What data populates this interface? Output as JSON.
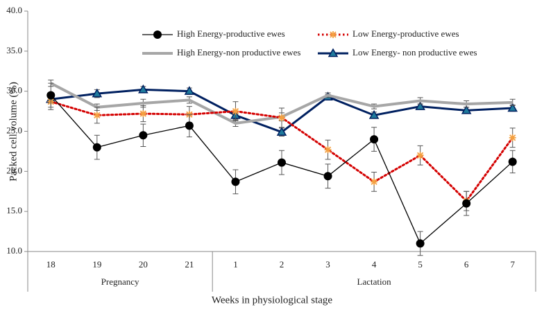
{
  "chart_data": {
    "type": "line",
    "x_label": "Weeks in physiological stage",
    "y_label": "Packed cell volume (%)",
    "categories": [
      "18",
      "19",
      "20",
      "21",
      "1",
      "2",
      "3",
      "4",
      "5",
      "6",
      "7"
    ],
    "groups": [
      {
        "name": "Pregnancy",
        "span": 4
      },
      {
        "name": "Lactation",
        "span": 7
      }
    ],
    "ylim": [
      10,
      40
    ],
    "yticks": [
      {
        "value": 10,
        "label": "10.0"
      },
      {
        "value": 15,
        "label": "15.0"
      },
      {
        "value": 20,
        "label": "20.0"
      },
      {
        "value": 25,
        "label": "25.0"
      },
      {
        "value": 30,
        "label": "30.0"
      },
      {
        "value": 35,
        "label": "35.0"
      },
      {
        "value": 40,
        "label": "40.0"
      }
    ],
    "grid": false,
    "series": [
      {
        "name": "High Energy-productive ewes",
        "color": "#000000",
        "marker": "circle",
        "dash": "solid",
        "values": [
          29.5,
          23.0,
          24.5,
          25.7,
          18.7,
          21.1,
          19.4,
          24.0,
          11.0,
          16.0,
          21.2
        ],
        "errors": [
          1.5,
          1.5,
          1.4,
          1.4,
          1.5,
          1.5,
          1.5,
          1.5,
          1.5,
          1.5,
          1.4
        ]
      },
      {
        "name": "Low Energy-productive ewes",
        "color": "#d40000",
        "marker": "star",
        "dash": "dotted",
        "values": [
          28.7,
          27.0,
          27.2,
          27.1,
          27.5,
          26.7,
          22.7,
          18.7,
          22.0,
          16.3,
          24.2
        ],
        "errors": [
          1.0,
          1.0,
          1.0,
          1.0,
          1.2,
          1.2,
          1.2,
          1.2,
          1.2,
          1.2,
          1.2
        ]
      },
      {
        "name": "High Energy-non productive ewes",
        "color": "#a6a6a6",
        "marker": "none",
        "dash": "solid",
        "values": [
          31.0,
          28.0,
          28.5,
          28.9,
          26.0,
          26.8,
          29.5,
          28.1,
          28.8,
          28.4,
          28.6
        ],
        "errors": [
          0.4,
          0.4,
          0.5,
          0.4,
          0.4,
          0.5,
          0.3,
          0.3,
          0.4,
          0.4,
          0.4
        ]
      },
      {
        "name": "Low Energy- non productive ewes",
        "color": "#002060",
        "marker": "triangle",
        "dash": "solid",
        "values": [
          29.0,
          29.7,
          30.2,
          30.0,
          27.0,
          24.9,
          29.3,
          27.0,
          28.1,
          27.6,
          27.9
        ],
        "errors": [
          0.5,
          0.5,
          0.4,
          0.4,
          0.5,
          0.5,
          0.3,
          0.4,
          0.3,
          0.4,
          0.4
        ]
      }
    ]
  }
}
